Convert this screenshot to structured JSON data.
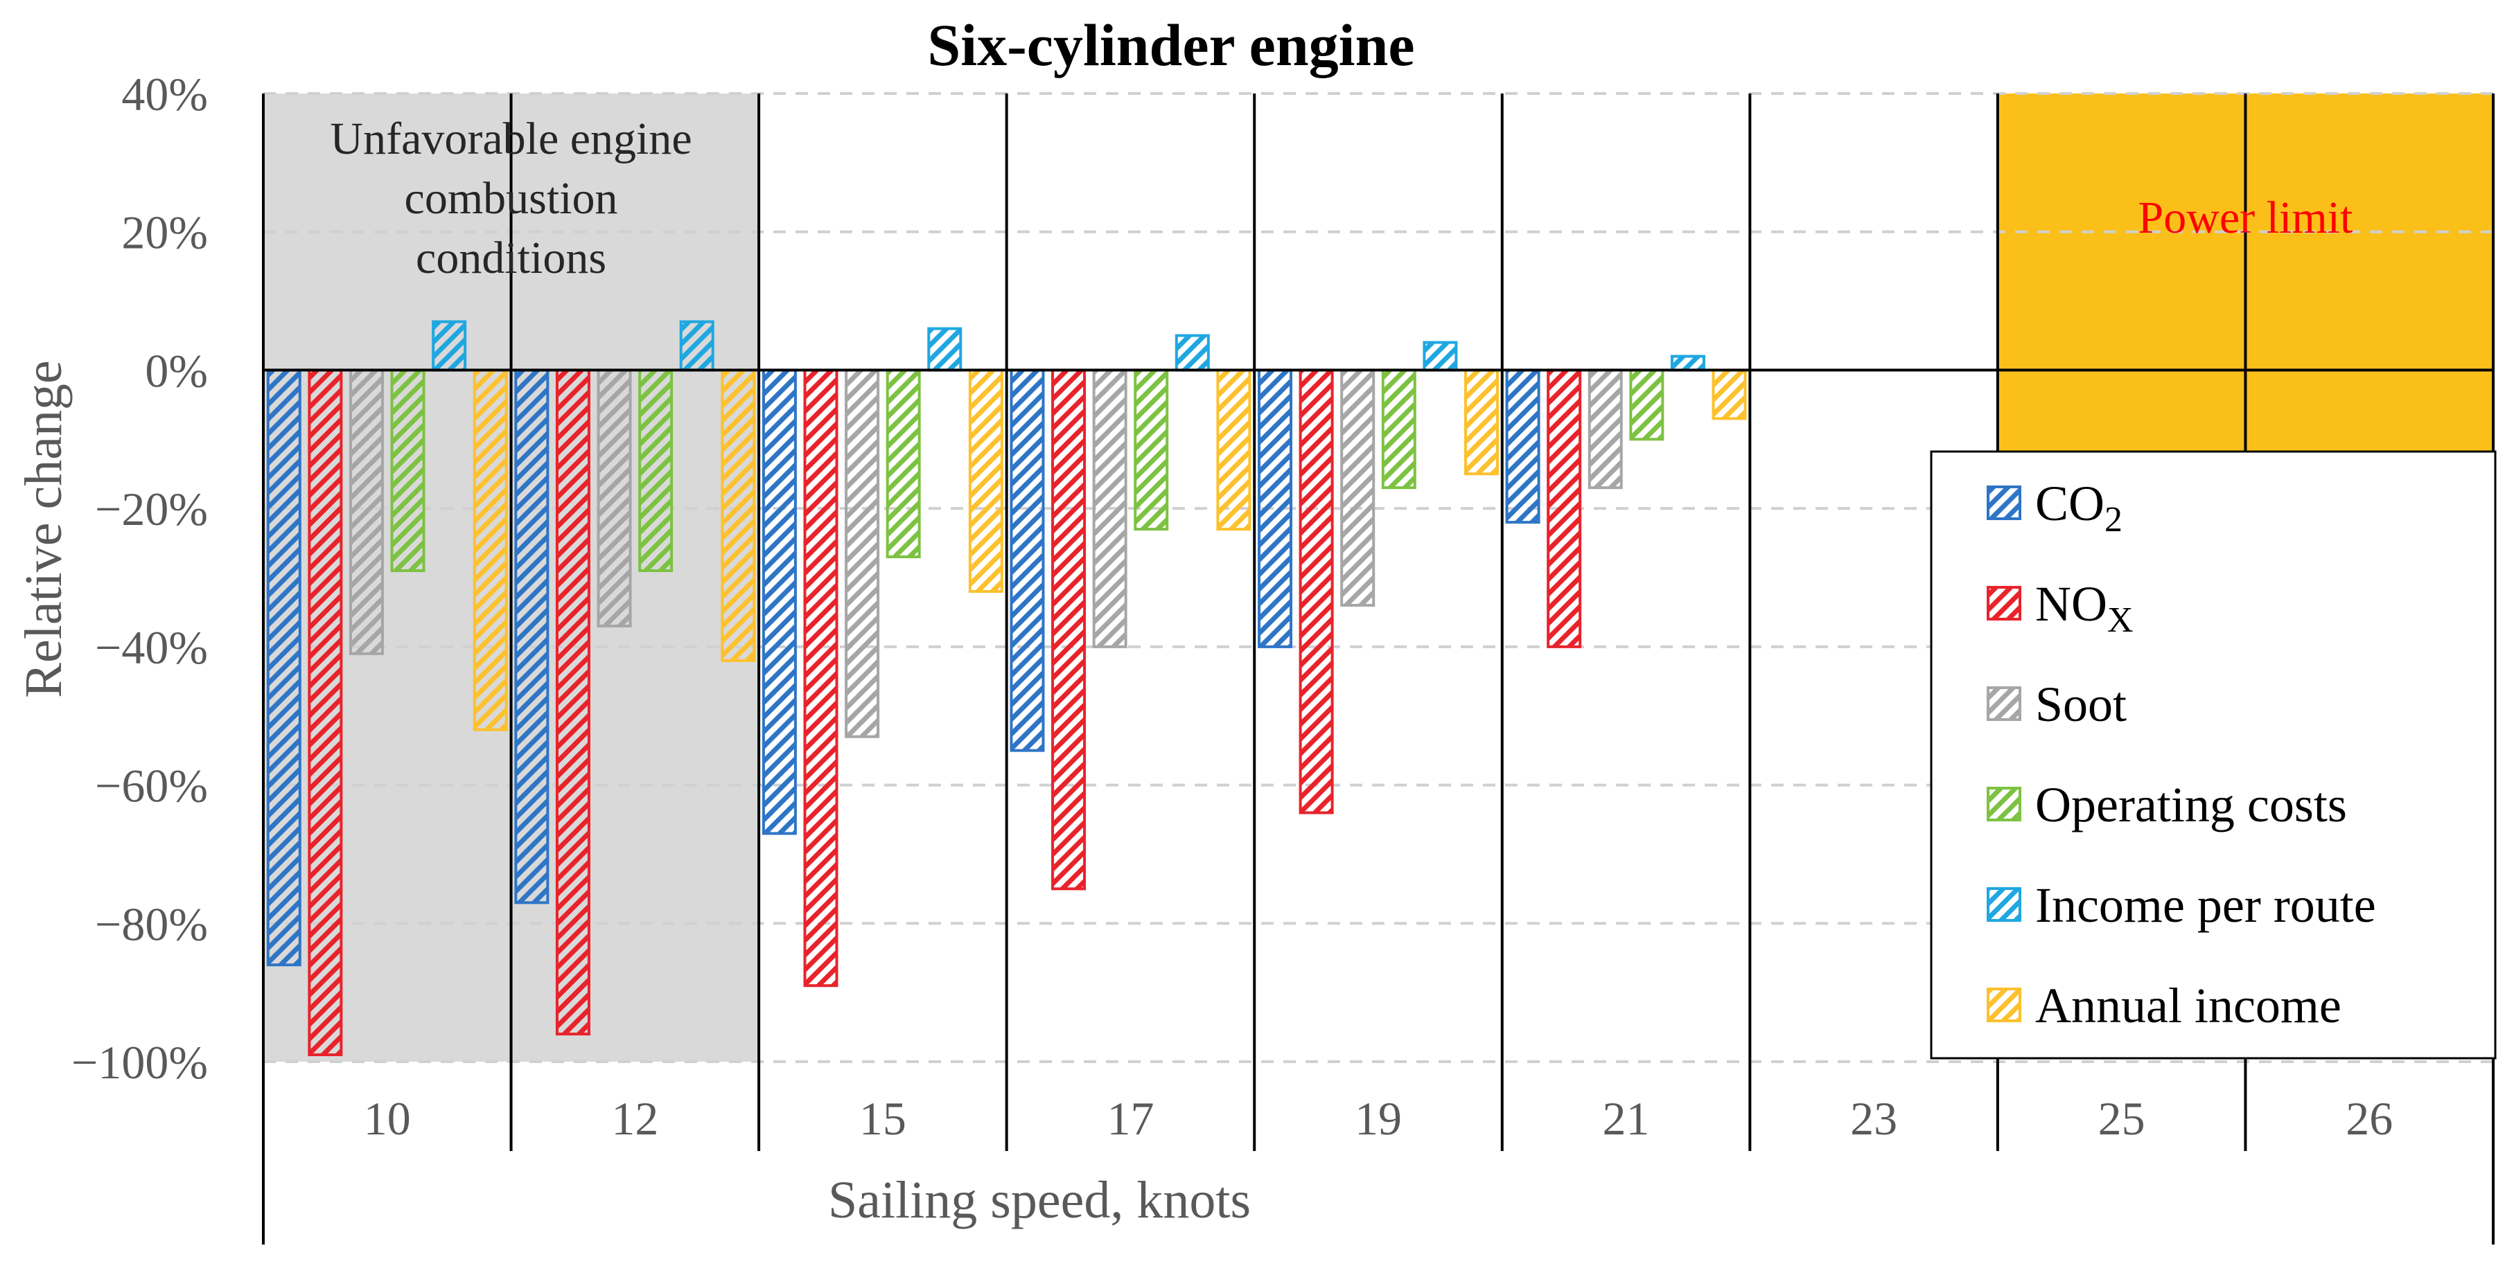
{
  "chart_data": {
    "type": "bar",
    "title": "Six-cylinder engine",
    "xlabel": "Sailing speed, knots",
    "ylabel": "Relative change",
    "ylim": [
      -100,
      40
    ],
    "yticks": [
      40,
      20,
      0,
      -20,
      -40,
      -60,
      -80,
      -100
    ],
    "ytick_labels": [
      "40%",
      "20%",
      "0%",
      "−20%",
      "−40%",
      "−60%",
      "−80%",
      "−100%"
    ],
    "grid": true,
    "legend_position": "right",
    "categories": [
      "10",
      "12",
      "15",
      "17",
      "19",
      "21",
      "23",
      "25",
      "26"
    ],
    "series": [
      {
        "name": "CO",
        "subscript": "2",
        "color": "#2E75C6",
        "values": [
          -86,
          -77,
          -67,
          -55,
          -40,
          -22,
          null,
          null,
          null
        ]
      },
      {
        "name": "NO",
        "subscript": "X",
        "color": "#E8232B",
        "values": [
          -99,
          -96,
          -89,
          -75,
          -64,
          -40,
          null,
          null,
          null
        ]
      },
      {
        "name": "Soot",
        "subscript": "",
        "color": "#A6A6A6",
        "values": [
          -41,
          -37,
          -53,
          -40,
          -34,
          -17,
          null,
          null,
          null
        ]
      },
      {
        "name": "Operating costs",
        "subscript": "",
        "color": "#7DC242",
        "values": [
          -29,
          -29,
          -27,
          -23,
          -17,
          -10,
          null,
          null,
          null
        ]
      },
      {
        "name": "Income per route",
        "subscript": "",
        "color": "#1FA7E1",
        "values": [
          7,
          7,
          6,
          5,
          4,
          2,
          null,
          null,
          null
        ]
      },
      {
        "name": "Annual income",
        "subscript": "",
        "color": "#FDC12E",
        "values": [
          -52,
          -42,
          -32,
          -23,
          -15,
          -7,
          null,
          null,
          null
        ]
      }
    ],
    "annotations": {
      "unfavorable_zone": {
        "lines": [
          "Unfavorable engine",
          "combustion",
          "conditions"
        ],
        "categories": [
          "10",
          "12"
        ],
        "color": "#D9D9D9"
      },
      "power_limit_zone": {
        "label": "Power limit",
        "categories": [
          "25",
          "26"
        ],
        "color": "#FBBF1A",
        "label_color": "#FF0000"
      }
    }
  }
}
